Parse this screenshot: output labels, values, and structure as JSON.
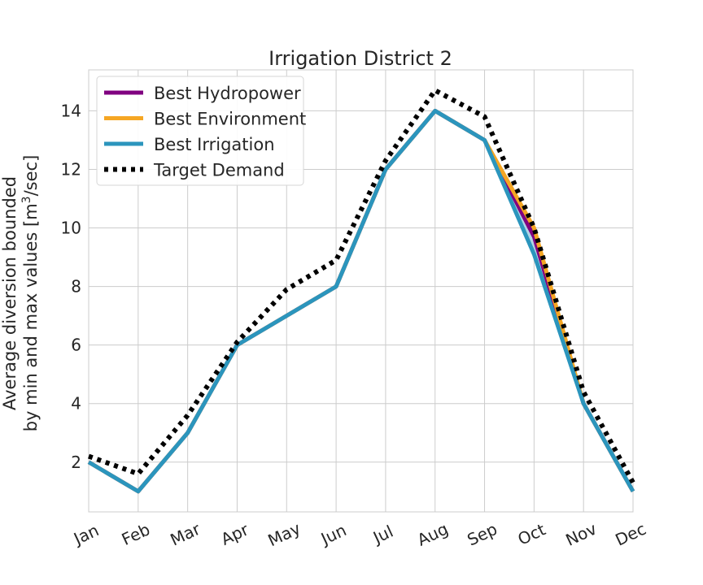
{
  "chart_data": {
    "type": "line",
    "title": "Irrigation District 2",
    "ylabel_line1": "Average diversion bounded",
    "ylabel_line2_prefix": "by min and max values [m",
    "ylabel_line2_sup": "3",
    "ylabel_line2_suffix": "/sec]",
    "xlabel": "",
    "categories": [
      "Jan",
      "Feb",
      "Mar",
      "Apr",
      "May",
      "Jun",
      "Jul",
      "Aug",
      "Sep",
      "Oct",
      "Nov",
      "Dec"
    ],
    "ylim": [
      0.3,
      15.4
    ],
    "yticks": [
      2,
      4,
      6,
      8,
      10,
      12,
      14
    ],
    "grid": true,
    "legend_position": "top-left",
    "series": [
      {
        "name": "Best Hydropower",
        "color": "#800080",
        "style": "solid",
        "values": [
          2,
          1,
          3,
          6,
          7,
          8,
          12,
          14,
          13,
          9.7,
          4,
          1
        ]
      },
      {
        "name": "Best Environment",
        "color": "#f5a623",
        "style": "solid",
        "values": [
          2,
          1,
          3,
          6,
          7,
          8,
          12,
          14,
          13,
          10,
          4,
          1
        ]
      },
      {
        "name": "Best Irrigation",
        "color": "#2b95bd",
        "style": "solid",
        "values": [
          2,
          1,
          3,
          6,
          7,
          8,
          12,
          14,
          13,
          9.1,
          4,
          1
        ],
        "band_min": [
          2,
          1,
          3,
          6,
          7,
          8,
          12,
          14,
          13,
          9.1,
          4,
          1
        ],
        "band_max": [
          2,
          1,
          3,
          6,
          7,
          8,
          12,
          14,
          13,
          10,
          4,
          1
        ],
        "band_color": "#9ccbe0"
      },
      {
        "name": "Target Demand",
        "color": "#000000",
        "style": "dotted",
        "values": [
          2.2,
          1.6,
          3.6,
          6.1,
          7.9,
          8.9,
          12.3,
          14.7,
          13.8,
          10,
          4.4,
          1.3
        ]
      }
    ]
  }
}
